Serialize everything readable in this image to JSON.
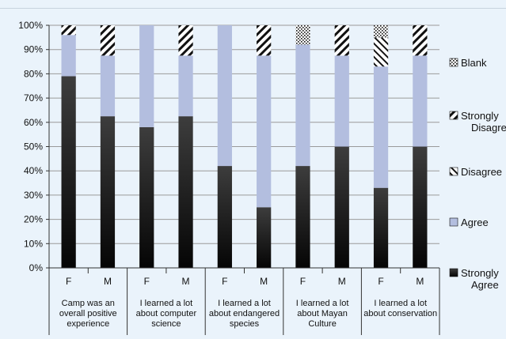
{
  "chart_data": {
    "type": "bar",
    "stacked": true,
    "percent_axis": true,
    "ylim": [
      0,
      100
    ],
    "yticks": [
      "0%",
      "10%",
      "20%",
      "30%",
      "40%",
      "50%",
      "60%",
      "70%",
      "80%",
      "90%",
      "100%"
    ],
    "grid": true,
    "legend_position": "right",
    "groups": [
      "Camp was an overall positive experience",
      "I learned a lot about computer science",
      "I learned a lot about endangered species",
      "I learned a lot about Mayan Culture",
      "I learned a lot about conservation"
    ],
    "group_lines": [
      [
        "Camp was an",
        "overall positive",
        "experience"
      ],
      [
        "I learned a lot",
        "about computer",
        "science"
      ],
      [
        "I learned a lot",
        "about endangered",
        "species"
      ],
      [
        "I learned a lot",
        "about Mayan",
        "Culture"
      ],
      [
        "I learned a lot",
        "about conservation"
      ]
    ],
    "categories": [
      "F",
      "M",
      "F",
      "M",
      "F",
      "M",
      "F",
      "M",
      "F",
      "M"
    ],
    "series": [
      {
        "name": "Strongly Agree",
        "color": "#111111",
        "values": [
          79,
          62.5,
          58,
          62.5,
          42,
          25,
          42,
          50,
          33,
          50
        ]
      },
      {
        "name": "Agree",
        "color": "#b3bedf",
        "values": [
          17,
          25,
          42,
          25,
          58,
          62.5,
          50,
          37.5,
          50,
          37.5
        ]
      },
      {
        "name": "Disagree",
        "color": "#ffffff",
        "pattern": "backslash",
        "values": [
          0,
          0,
          0,
          0,
          0,
          0,
          0,
          0,
          12,
          0
        ]
      },
      {
        "name": "Strongly Disagree",
        "color": "#ffffff",
        "pattern": "slash",
        "values": [
          4,
          12.5,
          0,
          12.5,
          0,
          12.5,
          0,
          12.5,
          0,
          12.5
        ]
      },
      {
        "name": "Blank",
        "color": "#ffffff",
        "pattern": "dots",
        "values": [
          0,
          0,
          0,
          0,
          0,
          0,
          8,
          0,
          5,
          0
        ]
      }
    ],
    "legend": [
      {
        "key": "Blank",
        "lines": [
          "Blank"
        ]
      },
      {
        "key": "Strongly Disagree",
        "lines": [
          "Strongly",
          "Disagree"
        ]
      },
      {
        "key": "Disagree",
        "lines": [
          "Disagree"
        ]
      },
      {
        "key": "Agree",
        "lines": [
          "Agree"
        ]
      },
      {
        "key": "Strongly Agree",
        "lines": [
          "Strongly",
          "Agree"
        ]
      }
    ]
  }
}
